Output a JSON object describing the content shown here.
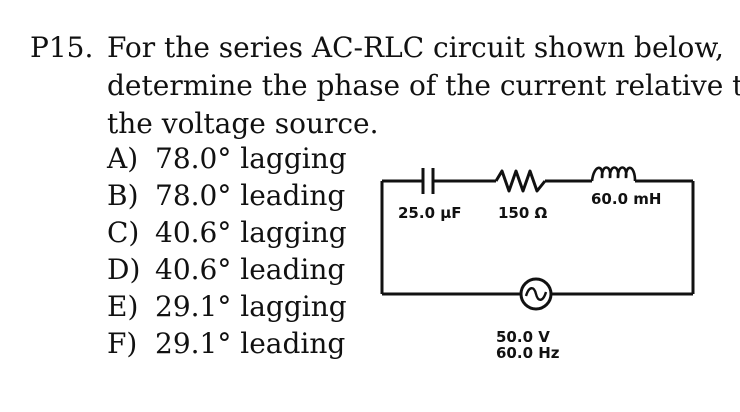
{
  "problem": {
    "number": "P15.",
    "stem_lines": [
      "For the series AC-RLC circuit shown below,",
      "determine the phase of the current relative to",
      "the voltage source."
    ]
  },
  "choices": [
    {
      "letter": "A)",
      "text": "78.0° lagging"
    },
    {
      "letter": "B)",
      "text": "78.0° leading"
    },
    {
      "letter": "C)",
      "text": "40.6° lagging"
    },
    {
      "letter": "D)",
      "text": "40.6° leading"
    },
    {
      "letter": "E)",
      "text": "29.1° lagging"
    },
    {
      "letter": "F)",
      "text": "29.1° leading"
    }
  ],
  "circuit": {
    "capacitor_label": "25.0 μF",
    "resistor_label": "150 Ω",
    "inductor_label": "60.0 mH",
    "source_voltage": "50.0 V",
    "source_frequency": "60.0 Hz"
  }
}
